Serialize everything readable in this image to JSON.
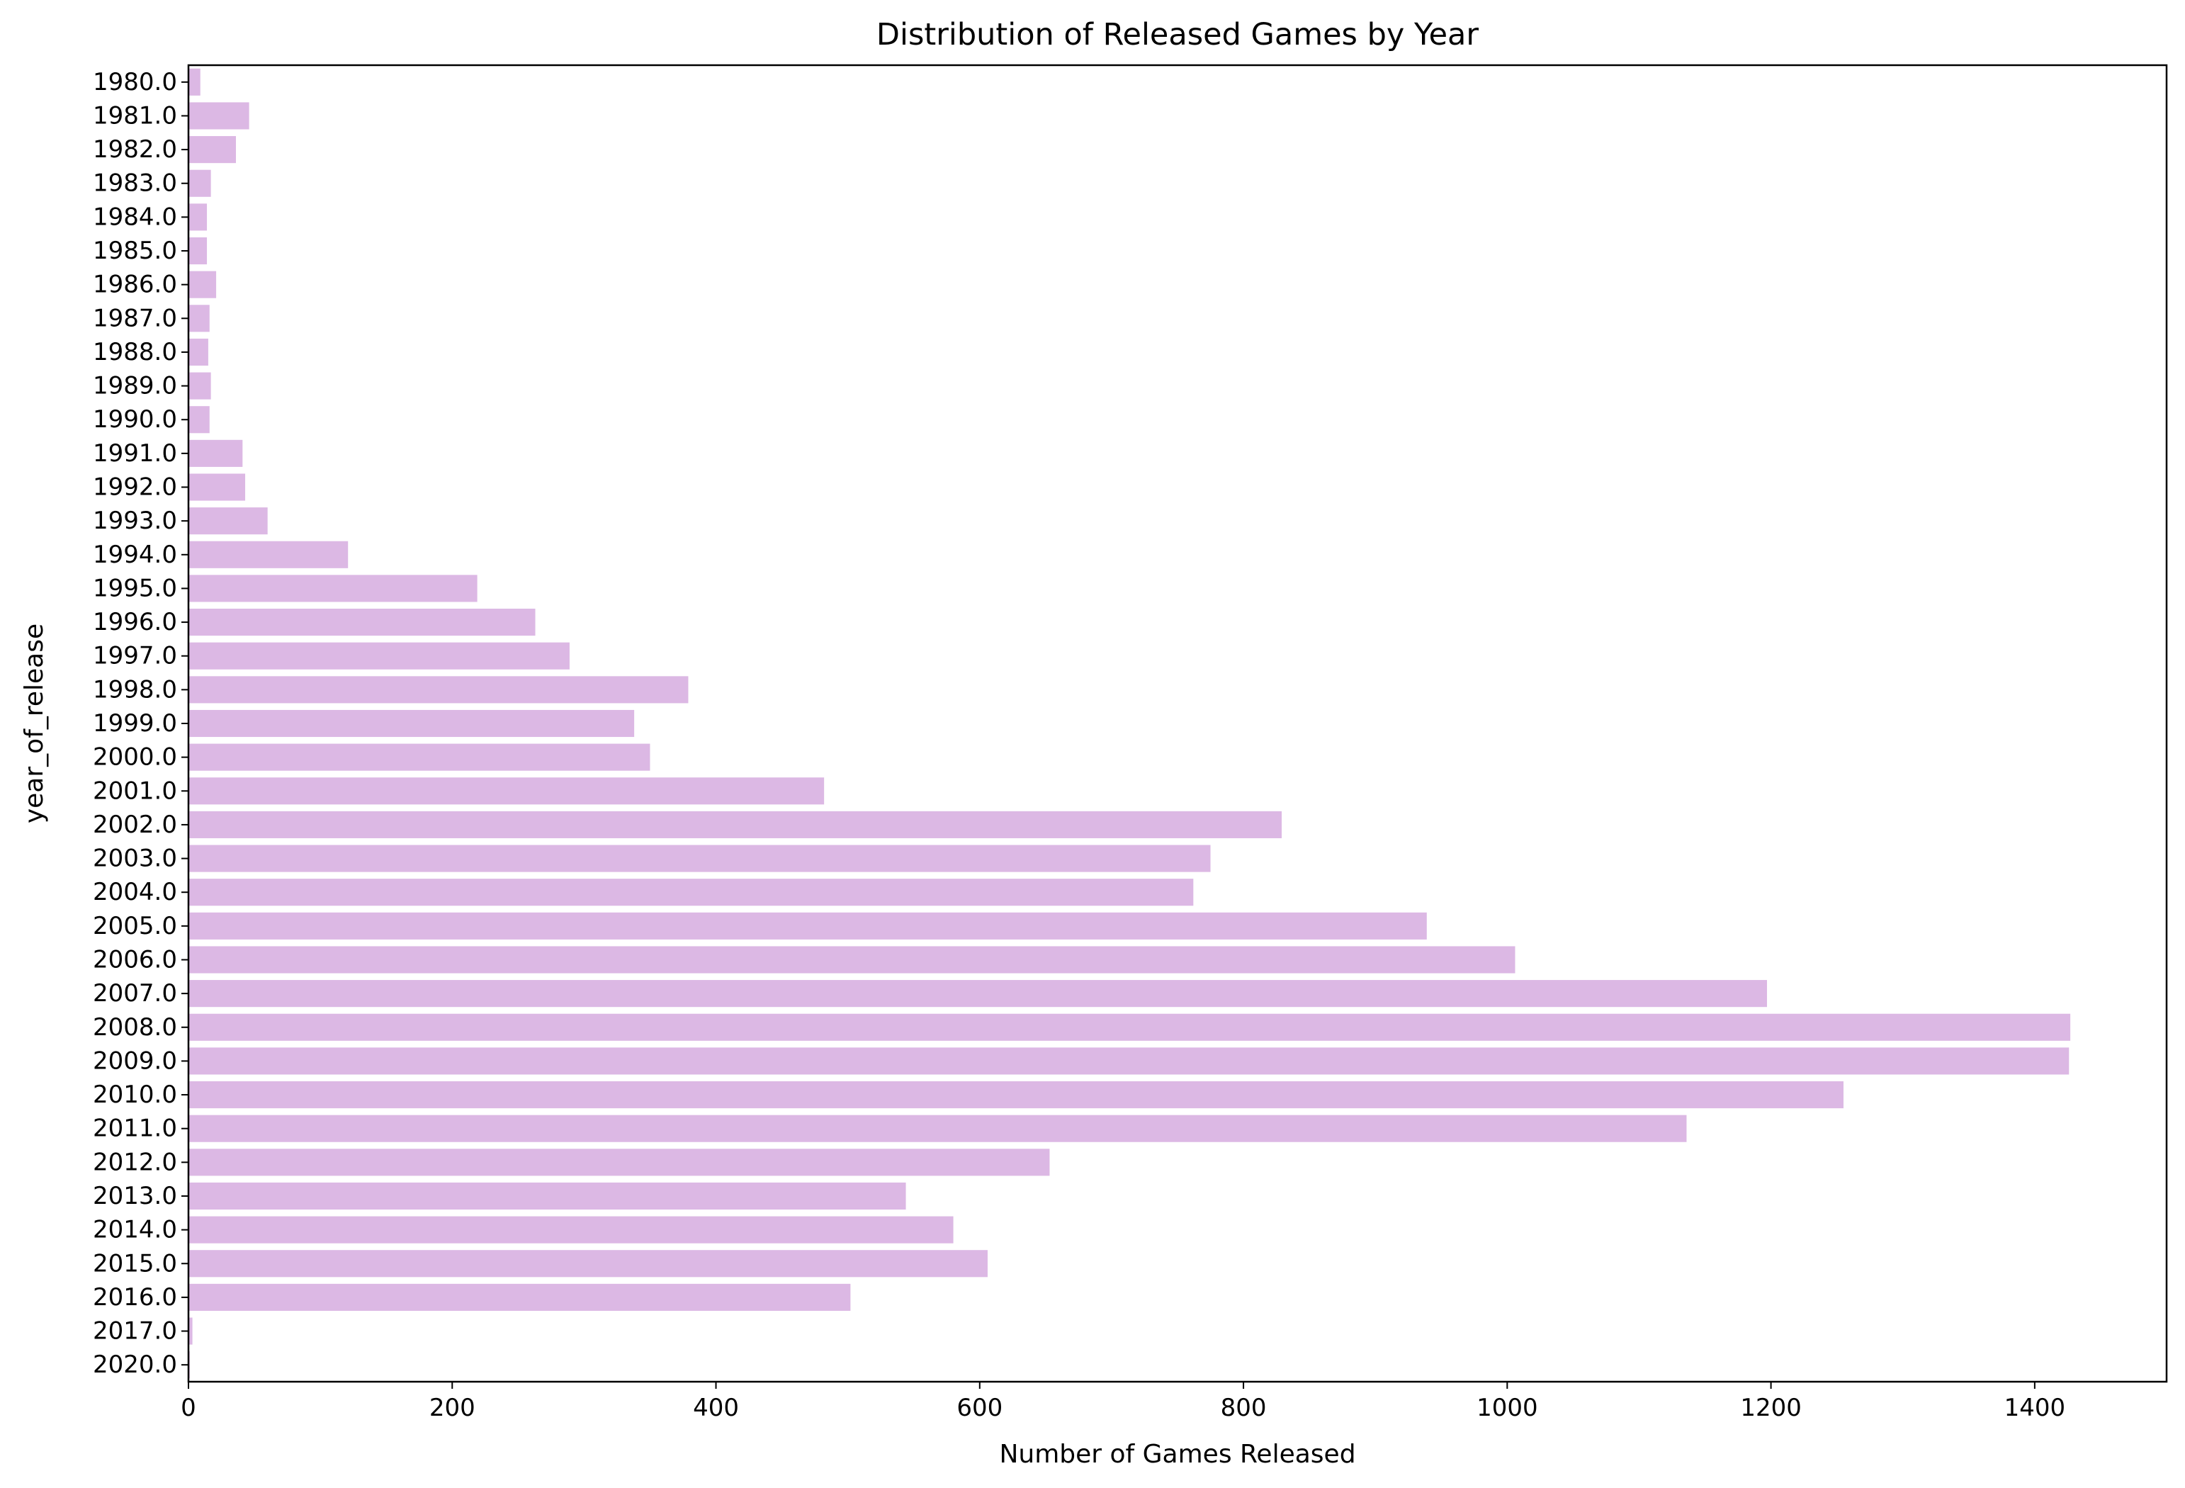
{
  "chart_data": {
    "type": "bar",
    "orientation": "horizontal",
    "title": "Distribution of Released Games by Year",
    "xlabel": "Number of Games Released",
    "ylabel": "year_of_release",
    "xlim": [
      0,
      1500
    ],
    "x_ticks": [
      "0",
      "200",
      "400",
      "600",
      "800",
      "1000",
      "1200",
      "1400"
    ],
    "grid": false,
    "bar_color": "#dcb8e4",
    "categories": [
      "1980.0",
      "1981.0",
      "1982.0",
      "1983.0",
      "1984.0",
      "1985.0",
      "1986.0",
      "1987.0",
      "1988.0",
      "1989.0",
      "1990.0",
      "1991.0",
      "1992.0",
      "1993.0",
      "1994.0",
      "1995.0",
      "1996.0",
      "1997.0",
      "1998.0",
      "1999.0",
      "2000.0",
      "2001.0",
      "2002.0",
      "2003.0",
      "2004.0",
      "2005.0",
      "2006.0",
      "2007.0",
      "2008.0",
      "2009.0",
      "2010.0",
      "2011.0",
      "2012.0",
      "2013.0",
      "2014.0",
      "2015.0",
      "2016.0",
      "2017.0",
      "2020.0"
    ],
    "values": [
      9,
      46,
      36,
      17,
      14,
      14,
      21,
      16,
      15,
      17,
      16,
      41,
      43,
      60,
      121,
      219,
      263,
      289,
      379,
      338,
      350,
      482,
      829,
      775,
      762,
      939,
      1006,
      1197,
      1427,
      1426,
      1255,
      1136,
      653,
      544,
      580,
      606,
      502,
      3,
      1
    ]
  }
}
